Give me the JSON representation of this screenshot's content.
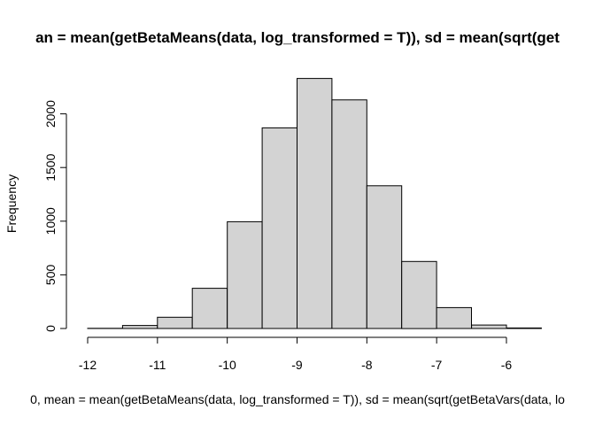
{
  "chart_data": {
    "type": "bar",
    "title": "an = mean(getBetaMeans(data, log_transformed = T)), sd = mean(sqrt(get",
    "xlabel": "0, mean = mean(getBetaMeans(data, log_transformed = T)), sd = mean(sqrt(getBetaVars(data, lo",
    "ylabel": "Frequency",
    "xlim": [
      -12.0,
      -5.5
    ],
    "ylim": [
      0,
      2300
    ],
    "x_ticks": [
      -12,
      -11,
      -10,
      -9,
      -8,
      -7,
      -6
    ],
    "y_ticks": [
      0,
      500,
      1000,
      1500,
      2000
    ],
    "bins": [
      {
        "x0": -12.0,
        "x1": -11.5,
        "value": 2
      },
      {
        "x0": -11.5,
        "x1": -11.0,
        "value": 28
      },
      {
        "x0": -11.0,
        "x1": -10.5,
        "value": 105
      },
      {
        "x0": -10.5,
        "x1": -10.0,
        "value": 375
      },
      {
        "x0": -10.0,
        "x1": -9.5,
        "value": 995
      },
      {
        "x0": -9.5,
        "x1": -9.0,
        "value": 1870
      },
      {
        "x0": -9.0,
        "x1": -8.5,
        "value": 2330
      },
      {
        "x0": -8.5,
        "x1": -8.0,
        "value": 2130
      },
      {
        "x0": -8.0,
        "x1": -7.5,
        "value": 1330
      },
      {
        "x0": -7.5,
        "x1": -7.0,
        "value": 625
      },
      {
        "x0": -7.0,
        "x1": -6.5,
        "value": 195
      },
      {
        "x0": -6.5,
        "x1": -6.0,
        "value": 32
      },
      {
        "x0": -6.0,
        "x1": -5.5,
        "value": 5
      }
    ],
    "bar_fill": "#d3d3d3",
    "bar_stroke": "#000000",
    "grid": false
  }
}
